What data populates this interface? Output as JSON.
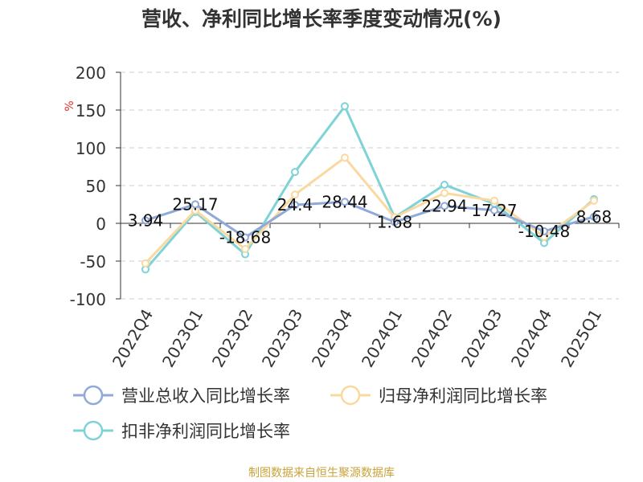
{
  "title": "营收、净利同比增长率季度变动情况(%)",
  "footer": "制图数据来自恒生聚源数据库",
  "chart_data": {
    "type": "line",
    "title": "营收、净利同比增长率季度变动情况(%)",
    "ylabel": "%",
    "xlabel": "",
    "ylim": [
      -100,
      200
    ],
    "yticks": [
      200,
      150,
      100,
      50,
      0,
      -50,
      -100
    ],
    "grid": true,
    "legend_position": "bottom",
    "categories": [
      "2022Q4",
      "2023Q1",
      "2023Q2",
      "2023Q3",
      "2023Q4",
      "2024Q1",
      "2024Q2",
      "2024Q3",
      "2024Q4",
      "2025Q1"
    ],
    "series": [
      {
        "name": "营业总收入同比增长率",
        "color": "#8fa9d8",
        "values": [
          3.94,
          25.17,
          -18.68,
          24.4,
          28.44,
          1.68,
          22.94,
          17.27,
          -10.48,
          8.68
        ],
        "labels": [
          "3.94",
          "25.17",
          "-18.68",
          "24.4",
          "28.44",
          "1.68",
          "22.94",
          "17.27",
          "-10.48",
          "8.68"
        ]
      },
      {
        "name": "归母净利润同比增长率",
        "color": "#fad9a0",
        "values": [
          -53,
          17,
          -34,
          38,
          87,
          8,
          40,
          30,
          -18,
          30
        ]
      },
      {
        "name": "扣非净利润同比增长率",
        "color": "#7fd3d6",
        "values": [
          -61,
          15,
          -41,
          68,
          155,
          8,
          51,
          26,
          -26,
          32
        ]
      }
    ]
  }
}
